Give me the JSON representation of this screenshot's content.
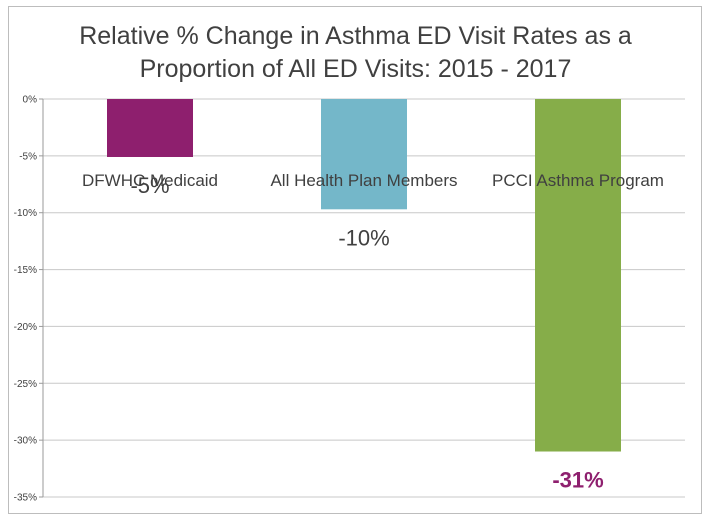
{
  "chart_data": {
    "type": "bar",
    "title_lines": [
      "Relative % Change in Asthma ED Visit Rates as a",
      "Proportion of All ED Visits: 2015 - 2017"
    ],
    "categories": [
      "DFWHC Medicaid",
      "All Health Plan Members",
      "PCCI Asthma Program"
    ],
    "values": [
      -5.1,
      -9.7,
      -31.0
    ],
    "data_labels": [
      "-5%",
      "-10%",
      "-31%"
    ],
    "bar_colors": [
      "#8e1f6e",
      "#74b7c9",
      "#86ad49"
    ],
    "data_label_colors": [
      "#404040",
      "#404040",
      "#8e1f6e"
    ],
    "ylim": [
      -35,
      0
    ],
    "y_ticks": [
      0,
      -5,
      -10,
      -15,
      -20,
      -25,
      -30,
      -35
    ],
    "y_tick_labels": [
      "0%",
      "-5%",
      "-10%",
      "-15%",
      "-20%",
      "-25%",
      "-30%",
      "-35%"
    ],
    "grid": true,
    "xlabel": "",
    "ylabel": ""
  }
}
